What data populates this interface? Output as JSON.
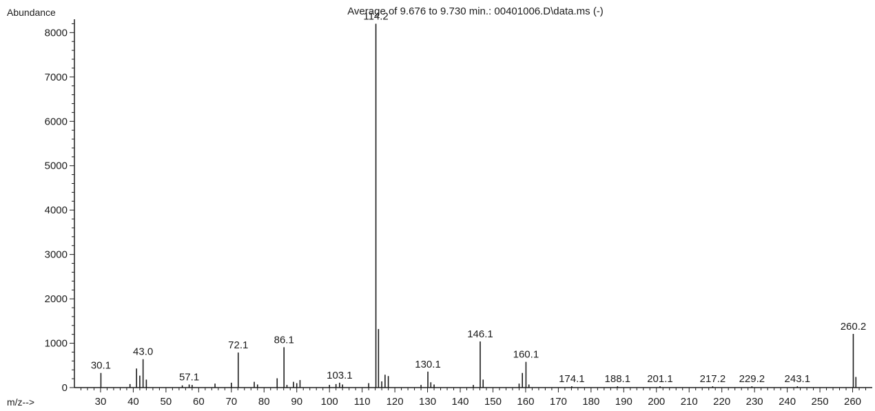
{
  "chart_data": {
    "type": "bar",
    "title": "Average of 9.676 to 9.730 min.: 00401006.D\\data.ms (-)",
    "ylabel": "Abundance",
    "xlabel": "m/z-->",
    "xlim": [
      22,
      266
    ],
    "ylim": [
      0,
      8300
    ],
    "x_ticks": [
      30,
      40,
      50,
      60,
      70,
      80,
      90,
      100,
      110,
      120,
      130,
      140,
      150,
      160,
      170,
      180,
      190,
      200,
      210,
      220,
      230,
      240,
      250,
      260
    ],
    "y_ticks": [
      0,
      1000,
      2000,
      3000,
      4000,
      5000,
      6000,
      7000,
      8000
    ],
    "peaks": [
      {
        "mz": 30.1,
        "abundance": 330,
        "label": "30.1"
      },
      {
        "mz": 39.0,
        "abundance": 80,
        "label": ""
      },
      {
        "mz": 41.0,
        "abundance": 430,
        "label": ""
      },
      {
        "mz": 42.0,
        "abundance": 270,
        "label": ""
      },
      {
        "mz": 43.0,
        "abundance": 640,
        "label": "43.0"
      },
      {
        "mz": 44.0,
        "abundance": 180,
        "label": ""
      },
      {
        "mz": 55.0,
        "abundance": 50,
        "label": ""
      },
      {
        "mz": 57.1,
        "abundance": 70,
        "label": "57.1"
      },
      {
        "mz": 58.0,
        "abundance": 60,
        "label": ""
      },
      {
        "mz": 65.0,
        "abundance": 90,
        "label": ""
      },
      {
        "mz": 70.0,
        "abundance": 110,
        "label": ""
      },
      {
        "mz": 72.1,
        "abundance": 790,
        "label": "72.1"
      },
      {
        "mz": 77.0,
        "abundance": 130,
        "label": ""
      },
      {
        "mz": 78.0,
        "abundance": 70,
        "label": ""
      },
      {
        "mz": 84.0,
        "abundance": 210,
        "label": ""
      },
      {
        "mz": 86.1,
        "abundance": 910,
        "label": "86.1"
      },
      {
        "mz": 87.0,
        "abundance": 60,
        "label": ""
      },
      {
        "mz": 89.0,
        "abundance": 130,
        "label": ""
      },
      {
        "mz": 90.0,
        "abundance": 100,
        "label": ""
      },
      {
        "mz": 91.0,
        "abundance": 170,
        "label": ""
      },
      {
        "mz": 100.0,
        "abundance": 60,
        "label": ""
      },
      {
        "mz": 102.0,
        "abundance": 80,
        "label": ""
      },
      {
        "mz": 103.1,
        "abundance": 110,
        "label": "103.1"
      },
      {
        "mz": 104.0,
        "abundance": 70,
        "label": ""
      },
      {
        "mz": 112.0,
        "abundance": 100,
        "label": ""
      },
      {
        "mz": 114.2,
        "abundance": 8200,
        "label": "114.2"
      },
      {
        "mz": 115.0,
        "abundance": 1320,
        "label": ""
      },
      {
        "mz": 116.0,
        "abundance": 140,
        "label": ""
      },
      {
        "mz": 117.0,
        "abundance": 290,
        "label": ""
      },
      {
        "mz": 118.0,
        "abundance": 260,
        "label": ""
      },
      {
        "mz": 128.0,
        "abundance": 60,
        "label": ""
      },
      {
        "mz": 130.1,
        "abundance": 360,
        "label": "130.1"
      },
      {
        "mz": 131.0,
        "abundance": 120,
        "label": ""
      },
      {
        "mz": 132.0,
        "abundance": 70,
        "label": ""
      },
      {
        "mz": 144.0,
        "abundance": 60,
        "label": ""
      },
      {
        "mz": 146.1,
        "abundance": 1040,
        "label": "146.1"
      },
      {
        "mz": 147.0,
        "abundance": 180,
        "label": ""
      },
      {
        "mz": 158.0,
        "abundance": 90,
        "label": ""
      },
      {
        "mz": 159.0,
        "abundance": 330,
        "label": ""
      },
      {
        "mz": 160.1,
        "abundance": 580,
        "label": "160.1"
      },
      {
        "mz": 161.0,
        "abundance": 70,
        "label": ""
      },
      {
        "mz": 174.1,
        "abundance": 30,
        "label": "174.1"
      },
      {
        "mz": 188.1,
        "abundance": 30,
        "label": "188.1"
      },
      {
        "mz": 201.1,
        "abundance": 30,
        "label": "201.1"
      },
      {
        "mz": 217.2,
        "abundance": 30,
        "label": "217.2"
      },
      {
        "mz": 229.2,
        "abundance": 30,
        "label": "229.2"
      },
      {
        "mz": 243.1,
        "abundance": 30,
        "label": "243.1"
      },
      {
        "mz": 260.2,
        "abundance": 1210,
        "label": "260.2"
      },
      {
        "mz": 261.0,
        "abundance": 240,
        "label": ""
      }
    ],
    "grid": false,
    "line_color": "#1a1a1a"
  }
}
